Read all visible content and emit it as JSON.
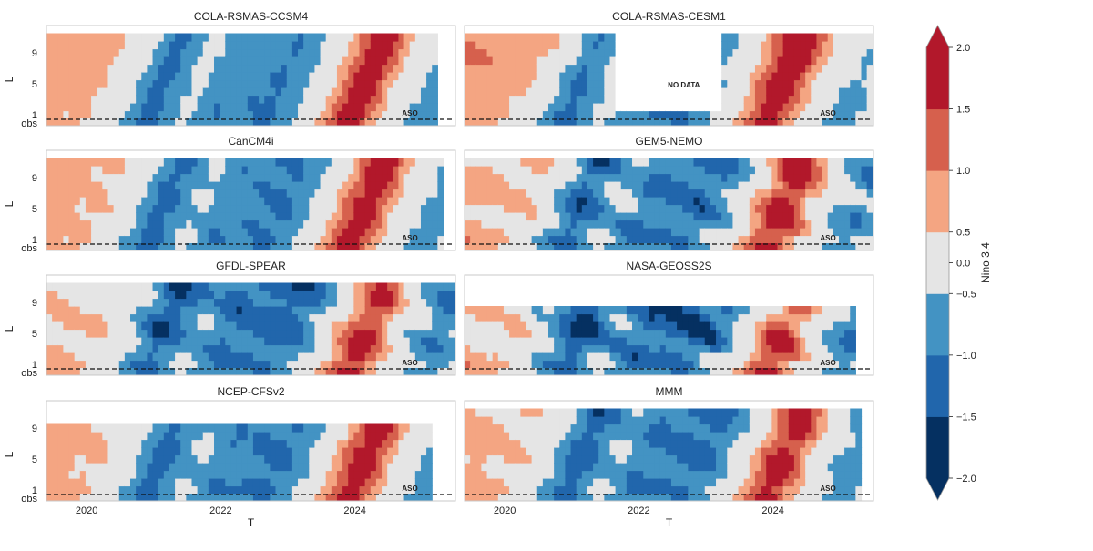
{
  "chart_data": {
    "type": "heatmap",
    "xlabel": "T",
    "ylabel": "L",
    "ytick_labels": [
      "9",
      "5",
      "1",
      "obs"
    ],
    "xticks": [
      2020,
      2022,
      2024
    ],
    "xlim": [
      2019.4,
      2025.5
    ],
    "ylim_lead_months": [
      0,
      12
    ],
    "colorbar": {
      "label": "Nino 3.4",
      "bounds": [
        -2.0,
        -1.5,
        -1.0,
        -0.5,
        0.5,
        1.0,
        1.5,
        2.0
      ],
      "tick_labels": [
        "2.0",
        "1.5",
        "1.0",
        "0.5",
        "0.0",
        "−0.5",
        "−1.0",
        "−1.5",
        "−2.0"
      ],
      "colors": [
        "#053061",
        "#2166ac",
        "#4393c3",
        "#e5e5e5",
        "#f4a582",
        "#d6604d",
        "#b2182b"
      ],
      "extend": "both",
      "over_color": "#b2182b",
      "under_color": "#053061"
    },
    "annotation_common": "ASO",
    "panels": [
      {
        "title": "COLA-RSMAS-CCSM4",
        "annotation": "ASO",
        "start": 2019.4,
        "end": 2025.2,
        "max_lead": 11,
        "offsets": [
          0,
          0.1,
          0.05
        ]
      },
      {
        "title": "COLA-RSMAS-CESM1",
        "annotation": "ASO",
        "start": 2019.4,
        "end": 2025.4,
        "max_lead": 11,
        "nodata_text": "NO DATA",
        "nodata": [
          2021.6,
          2023.2
        ],
        "offsets": [
          0.1,
          0.35,
          0.0
        ]
      },
      {
        "title": "CanCM4i",
        "annotation": "ASO",
        "start": 2019.4,
        "end": 2025.3,
        "max_lead": 11,
        "offsets": [
          0.05,
          0.05,
          0.1
        ]
      },
      {
        "title": "GEM5-NEMO",
        "annotation": "ASO",
        "start": 2019.4,
        "end": 2025.4,
        "max_lead": 11,
        "offsets": [
          0.35,
          -0.05,
          0.1
        ]
      },
      {
        "title": "GFDL-SPEAR",
        "annotation": "ASO",
        "start": 2019.4,
        "end": 2025.4,
        "max_lead": 11,
        "offsets": [
          0.3,
          -0.3,
          -0.05
        ]
      },
      {
        "title": "NASA-GEOSS2S",
        "annotation": "ASO",
        "start": 2019.4,
        "end": 2025.2,
        "max_lead": 8,
        "offsets": [
          0.4,
          -0.6,
          0.15
        ]
      },
      {
        "title": "NCEP-CFSv2",
        "annotation": "ASO",
        "start": 2019.4,
        "end": 2025.1,
        "max_lead": 9,
        "offsets": [
          0.1,
          0.0,
          0.05
        ]
      },
      {
        "title": "MMM",
        "annotation": "ASO",
        "start": 2019.4,
        "end": 2025.3,
        "max_lead": 11,
        "offsets": [
          0.2,
          -0.1,
          0.05
        ]
      }
    ],
    "nino34_obs": {
      "years": [
        2019.4,
        2019.6,
        2019.8,
        2020.0,
        2020.2,
        2020.4,
        2020.6,
        2020.8,
        2021.0,
        2021.2,
        2021.4,
        2021.6,
        2021.8,
        2022.0,
        2022.2,
        2022.4,
        2022.6,
        2022.8,
        2023.0,
        2023.2,
        2023.4,
        2023.6,
        2023.8,
        2024.0,
        2024.2,
        2024.4,
        2024.6,
        2024.8,
        2025.0,
        2025.2,
        2025.4
      ],
      "values": [
        0.7,
        0.5,
        0.6,
        0.4,
        0.2,
        -0.3,
        -0.8,
        -1.3,
        -1.0,
        -0.6,
        -0.4,
        -0.7,
        -1.0,
        -0.9,
        -1.0,
        -1.0,
        -1.1,
        -0.9,
        -0.6,
        -0.1,
        0.5,
        1.2,
        1.8,
        1.6,
        0.8,
        0.1,
        -0.3,
        -0.6,
        -0.8,
        -0.5,
        -0.2
      ]
    }
  }
}
